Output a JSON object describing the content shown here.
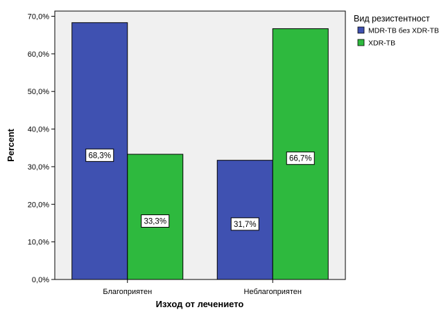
{
  "chart_data": {
    "type": "bar",
    "xlabel": "Изход от лечението",
    "ylabel": "Percent",
    "ylim": [
      0,
      70
    ],
    "yticks": [
      "0,0%",
      "10,0%",
      "20,0%",
      "30,0%",
      "40,0%",
      "50,0%",
      "60,0%",
      "70,0%"
    ],
    "categories": [
      "Благоприятен",
      "Неблагоприятен"
    ],
    "legend_title": "Вид резистентност",
    "legend_position": "top-right",
    "grid": false,
    "series": [
      {
        "name": "MDR-TB без XDR-TB",
        "color": "#3f51b1",
        "values": [
          68.3,
          31.7
        ],
        "labels": [
          "68,3%",
          "31,7%"
        ]
      },
      {
        "name": "XDR-TB",
        "color": "#2eb93e",
        "values": [
          33.3,
          66.7
        ],
        "labels": [
          "33,3%",
          "66,7%"
        ]
      }
    ],
    "plot_background": "#f0f0f0"
  }
}
